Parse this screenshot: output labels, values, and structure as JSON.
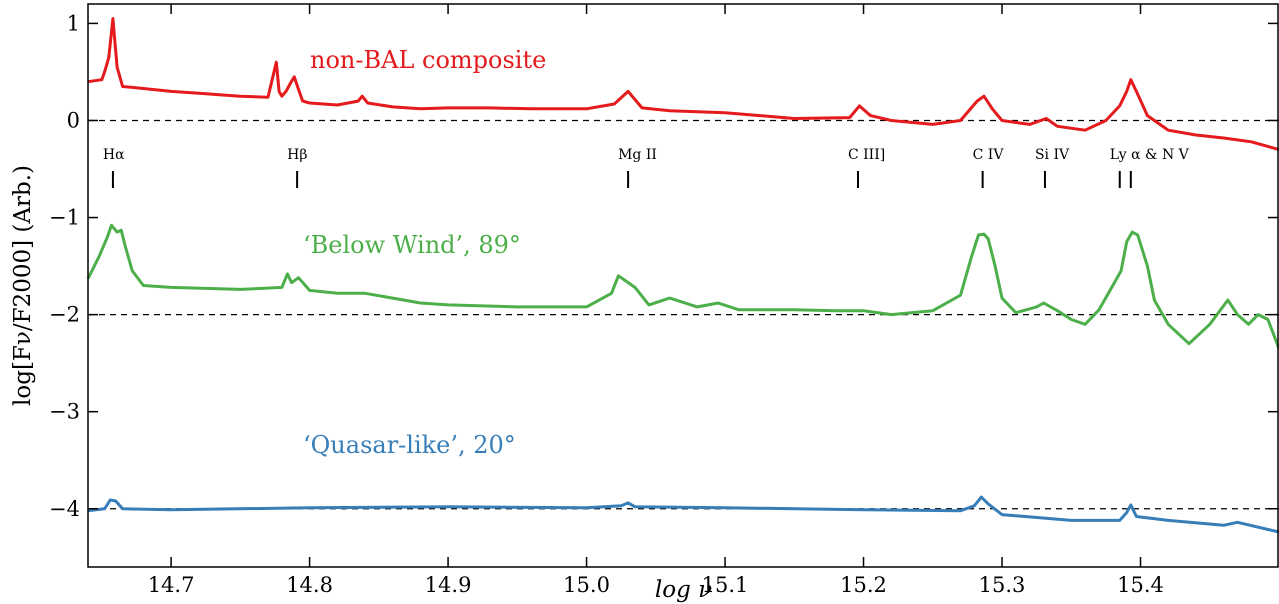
{
  "chart_data": {
    "type": "line",
    "xlabel": "log ν",
    "ylabel": "log[Fν/F2000] (Arb.)",
    "xlim": [
      14.64,
      15.5
    ],
    "ylim": [
      -4.6,
      1.2
    ],
    "x_ticks": [
      14.7,
      14.8,
      14.9,
      15.0,
      15.1,
      15.2,
      15.3,
      15.4
    ],
    "x_tick_labels": [
      "14.7",
      "14.8",
      "14.9",
      "15.0",
      "15.1",
      "15.2",
      "15.3",
      "15.4"
    ],
    "y_ticks": [
      1,
      0,
      -1,
      -2,
      -3,
      -4
    ],
    "y_tick_labels": [
      "1",
      "0",
      "−1",
      "−2",
      "−3",
      "−4"
    ],
    "reference_lines": [
      0,
      -2,
      -4
    ],
    "line_markers": [
      {
        "label": "Hα",
        "x": [
          14.658
        ]
      },
      {
        "label": "Hβ",
        "x": [
          14.791
        ]
      },
      {
        "label": "Mg II",
        "x": [
          15.03
        ]
      },
      {
        "label": "C III]",
        "x": [
          15.196
        ]
      },
      {
        "label": "C IV",
        "x": [
          15.286
        ]
      },
      {
        "label": "Si IV",
        "x": [
          15.331
        ]
      },
      {
        "label": "Ly α & N V",
        "x": [
          15.385,
          15.393
        ]
      }
    ],
    "series": [
      {
        "name": "non-BAL composite",
        "color": "#e41a1c",
        "x": [
          14.64,
          14.65,
          14.652,
          14.655,
          14.658,
          14.661,
          14.665,
          14.68,
          14.7,
          14.72,
          14.75,
          14.77,
          14.776,
          14.778,
          14.78,
          14.783,
          14.786,
          14.789,
          14.792,
          14.795,
          14.8,
          14.82,
          14.835,
          14.838,
          14.842,
          14.86,
          14.88,
          14.9,
          14.93,
          14.96,
          15.0,
          15.02,
          15.03,
          15.04,
          15.06,
          15.1,
          15.15,
          15.19,
          15.197,
          15.205,
          15.22,
          15.25,
          15.27,
          15.282,
          15.287,
          15.293,
          15.3,
          15.32,
          15.332,
          15.34,
          15.36,
          15.375,
          15.385,
          15.39,
          15.393,
          15.397,
          15.405,
          15.42,
          15.44,
          15.46,
          15.48,
          15.5
        ],
        "y": [
          0.4,
          0.42,
          0.5,
          0.65,
          1.05,
          0.55,
          0.35,
          0.33,
          0.3,
          0.28,
          0.25,
          0.24,
          0.6,
          0.3,
          0.25,
          0.3,
          0.38,
          0.45,
          0.32,
          0.2,
          0.18,
          0.16,
          0.2,
          0.25,
          0.18,
          0.14,
          0.12,
          0.13,
          0.13,
          0.12,
          0.12,
          0.17,
          0.3,
          0.13,
          0.1,
          0.08,
          0.02,
          0.03,
          0.15,
          0.05,
          0.0,
          -0.04,
          0.0,
          0.2,
          0.25,
          0.12,
          0.0,
          -0.04,
          0.02,
          -0.06,
          -0.1,
          0.0,
          0.15,
          0.3,
          0.42,
          0.3,
          0.05,
          -0.1,
          -0.15,
          -0.18,
          -0.22,
          -0.3
        ]
      },
      {
        "name": "‘Below Wind’, 89°",
        "color": "#4daf4a",
        "x": [
          14.64,
          14.648,
          14.654,
          14.657,
          14.661,
          14.664,
          14.667,
          14.672,
          14.68,
          14.7,
          14.75,
          14.78,
          14.784,
          14.787,
          14.792,
          14.8,
          14.82,
          14.84,
          14.86,
          14.88,
          14.9,
          14.95,
          15.0,
          15.018,
          15.023,
          15.028,
          15.035,
          15.045,
          15.06,
          15.08,
          15.095,
          15.11,
          15.15,
          15.18,
          15.2,
          15.22,
          15.25,
          15.27,
          15.278,
          15.283,
          15.287,
          15.29,
          15.295,
          15.3,
          15.31,
          15.325,
          15.33,
          15.34,
          15.35,
          15.36,
          15.37,
          15.38,
          15.386,
          15.39,
          15.394,
          15.398,
          15.405,
          15.41,
          15.42,
          15.435,
          15.45,
          15.463,
          15.47,
          15.478,
          15.485,
          15.492,
          15.5
        ],
        "y": [
          -1.63,
          -1.4,
          -1.2,
          -1.08,
          -1.15,
          -1.13,
          -1.3,
          -1.55,
          -1.7,
          -1.72,
          -1.74,
          -1.72,
          -1.58,
          -1.67,
          -1.62,
          -1.75,
          -1.78,
          -1.78,
          -1.83,
          -1.88,
          -1.9,
          -1.92,
          -1.92,
          -1.78,
          -1.6,
          -1.65,
          -1.72,
          -1.9,
          -1.83,
          -1.92,
          -1.88,
          -1.95,
          -1.95,
          -1.96,
          -1.96,
          -2.0,
          -1.96,
          -1.8,
          -1.4,
          -1.18,
          -1.17,
          -1.22,
          -1.5,
          -1.83,
          -1.98,
          -1.92,
          -1.88,
          -1.96,
          -2.05,
          -2.1,
          -1.95,
          -1.7,
          -1.55,
          -1.25,
          -1.15,
          -1.18,
          -1.5,
          -1.85,
          -2.1,
          -2.3,
          -2.1,
          -1.85,
          -2.0,
          -2.1,
          -2.0,
          -2.05,
          -2.35
        ]
      },
      {
        "name": "‘Quasar-like’, 20°",
        "color": "#377eb8",
        "x": [
          14.64,
          14.652,
          14.656,
          14.66,
          14.665,
          14.7,
          14.8,
          14.9,
          15.0,
          15.025,
          15.03,
          15.035,
          15.1,
          15.2,
          15.27,
          15.28,
          15.285,
          15.29,
          15.3,
          15.35,
          15.385,
          15.39,
          15.393,
          15.397,
          15.42,
          15.46,
          15.47,
          15.5
        ],
        "y": [
          -4.02,
          -4.0,
          -3.91,
          -3.92,
          -4.0,
          -4.01,
          -3.99,
          -3.98,
          -3.99,
          -3.97,
          -3.94,
          -3.98,
          -3.99,
          -4.01,
          -4.02,
          -3.97,
          -3.88,
          -3.95,
          -4.06,
          -4.12,
          -4.12,
          -4.04,
          -3.96,
          -4.08,
          -4.12,
          -4.17,
          -4.14,
          -4.24
        ]
      }
    ]
  }
}
